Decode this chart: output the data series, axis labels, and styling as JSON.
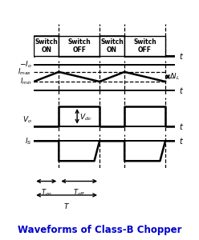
{
  "title": "Waveforms of Class-B Chopper",
  "title_color": "#0000CC",
  "bg_color": "#ffffff",
  "ton": 0.38,
  "toff": 0.62,
  "period": 1.0,
  "num_periods": 2,
  "switch_labels": [
    "Switch\nON",
    "Switch\nOFF",
    "Switch\nON",
    "Switch\nOFF"
  ],
  "Imax": 0.72,
  "Imin": 0.35,
  "Io_ref": 1.0,
  "Vdc": 0.75,
  "Is_low": -0.85
}
